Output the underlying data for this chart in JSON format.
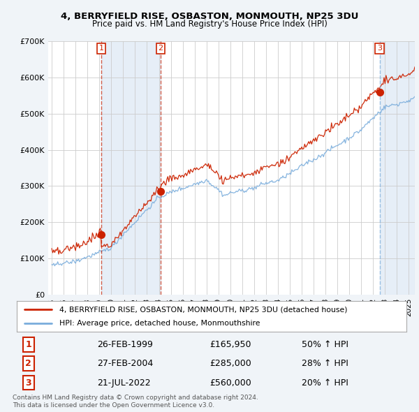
{
  "title": "4, BERRYFIELD RISE, OSBASTON, MONMOUTH, NP25 3DU",
  "subtitle": "Price paid vs. HM Land Registry's House Price Index (HPI)",
  "background_color": "#f0f4f8",
  "plot_background": "#ffffff",
  "shaded_color": "#dce8f5",
  "transactions": [
    {
      "label": "1",
      "date_str": "26-FEB-1999",
      "price": 165950,
      "pct": "50%",
      "x": 1999.15,
      "vline_style": "dashed_red"
    },
    {
      "label": "2",
      "date_str": "27-FEB-2004",
      "price": 285000,
      "pct": "28%",
      "x": 2004.15,
      "vline_style": "dashed_red"
    },
    {
      "label": "3",
      "date_str": "21-JUL-2022",
      "price": 560000,
      "pct": "20%",
      "x": 2022.55,
      "vline_style": "dashed_blue"
    }
  ],
  "ylim": [
    0,
    700000
  ],
  "yticks": [
    0,
    100000,
    200000,
    300000,
    400000,
    500000,
    600000,
    700000
  ],
  "ytick_labels": [
    "£0",
    "£100K",
    "£200K",
    "£300K",
    "£400K",
    "£500K",
    "£600K",
    "£700K"
  ],
  "xlim": [
    1994.7,
    2025.5
  ],
  "legend_line1": "4, BERRYFIELD RISE, OSBASTON, MONMOUTH, NP25 3DU (detached house)",
  "legend_line2": "HPI: Average price, detached house, Monmouthshire",
  "footer_line1": "Contains HM Land Registry data © Crown copyright and database right 2024.",
  "footer_line2": "This data is licensed under the Open Government Licence v3.0.",
  "red_color": "#cc2200",
  "blue_color": "#7aaddc",
  "table_rows": [
    [
      "1",
      "26-FEB-1999",
      "£165,950",
      "50% ↑ HPI"
    ],
    [
      "2",
      "27-FEB-2004",
      "£285,000",
      "28% ↑ HPI"
    ],
    [
      "3",
      "21-JUL-2022",
      "£560,000",
      "20% ↑ HPI"
    ]
  ]
}
